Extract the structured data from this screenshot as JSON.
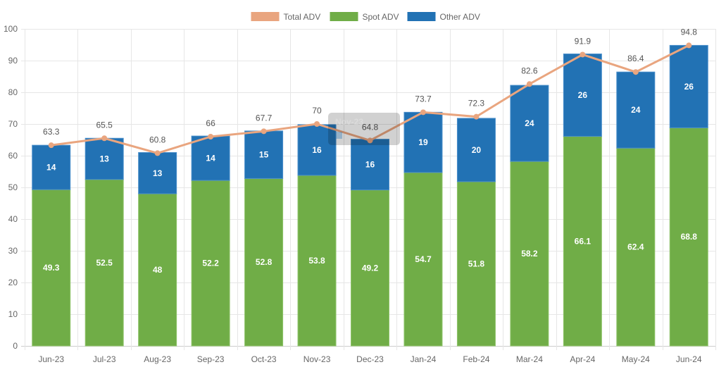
{
  "chart_data": {
    "type": "bar",
    "stacked": true,
    "title": "",
    "xlabel": "",
    "ylabel": "",
    "ylim": [
      0,
      100
    ],
    "ytick_step": 10,
    "grid": true,
    "legend_position": "top-center",
    "categories": [
      "Jun-23",
      "Jul-23",
      "Aug-23",
      "Sep-23",
      "Oct-23",
      "Nov-23",
      "Dec-23",
      "Jan-24",
      "Feb-24",
      "Mar-24",
      "Apr-24",
      "May-24",
      "Jun-24"
    ],
    "series": [
      {
        "name": "Total ADV",
        "type": "line",
        "color": "#E9A57F",
        "values": [
          63.3,
          65.5,
          60.8,
          66,
          67.7,
          70,
          64.8,
          73.7,
          72.3,
          82.6,
          91.9,
          86.4,
          94.8
        ]
      },
      {
        "name": "Spot ADV",
        "type": "bar",
        "color": "#70AD47",
        "values": [
          49.3,
          52.5,
          48,
          52.2,
          52.8,
          53.8,
          49.2,
          54.7,
          51.8,
          58.2,
          66.1,
          62.4,
          68.8
        ]
      },
      {
        "name": "Other ADV",
        "type": "bar",
        "color": "#2272B4",
        "values": [
          14,
          13,
          13,
          14,
          15,
          16,
          16,
          19,
          20,
          24,
          26,
          24,
          26
        ]
      }
    ],
    "tooltip": {
      "title": "Nov-23",
      "visible_faded": true
    }
  }
}
